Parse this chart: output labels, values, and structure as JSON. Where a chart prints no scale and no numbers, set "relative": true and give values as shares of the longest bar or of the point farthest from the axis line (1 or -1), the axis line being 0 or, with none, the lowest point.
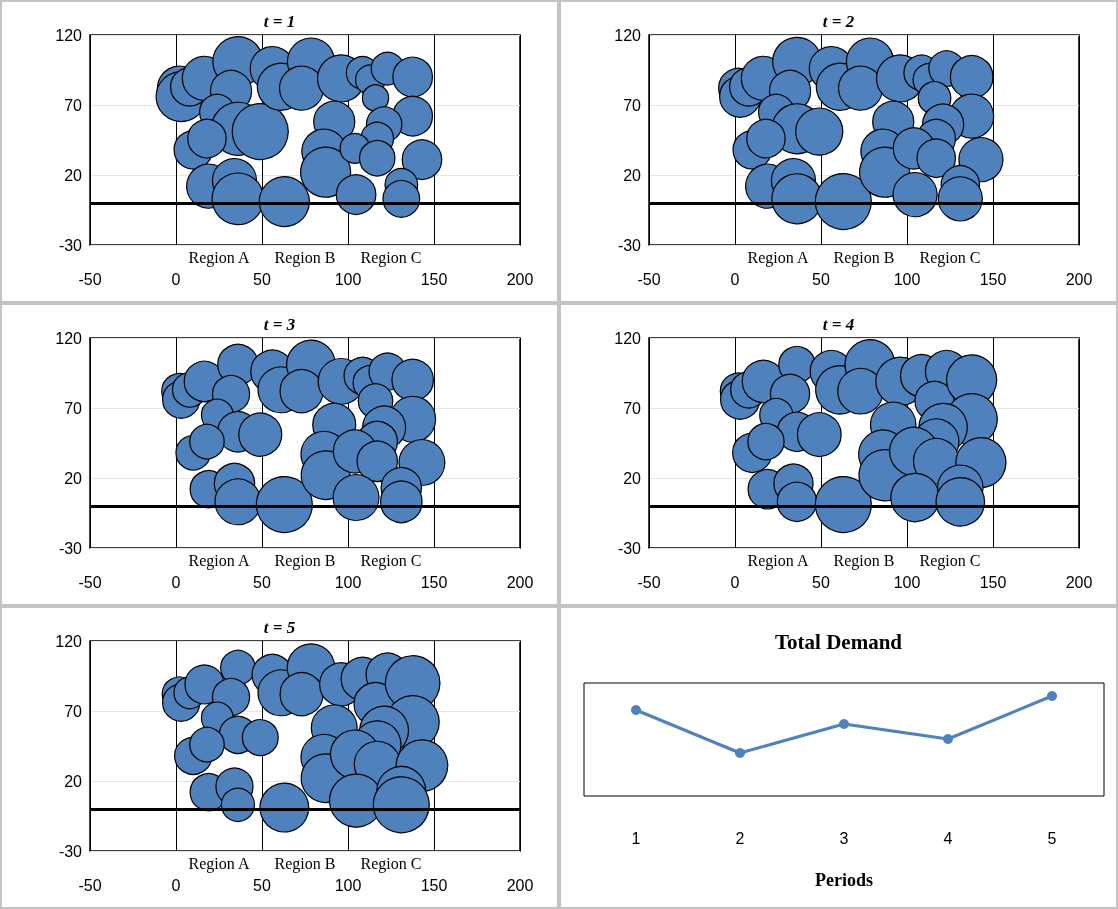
{
  "chart_data": [
    {
      "type": "bubble",
      "title": "t = 1",
      "color": "#4f81bd",
      "xlim": [
        -50,
        200
      ],
      "ylim": [
        -30,
        120
      ],
      "xticks": [
        -50,
        0,
        50,
        100,
        150,
        200
      ],
      "yticks": [
        -30,
        20,
        70,
        120
      ],
      "grid": true,
      "ref_lines": [
        {
          "axis": "y",
          "value": 0,
          "color": "#000000"
        }
      ],
      "annotations": [
        "Region A",
        "Region B",
        "Region C"
      ],
      "x": [
        2,
        3,
        8,
        16.5,
        36,
        32,
        24,
        36,
        49,
        10,
        18,
        19,
        34,
        36,
        56,
        61,
        78.5,
        73,
        96,
        63,
        92,
        86,
        87,
        108.5,
        113,
        123,
        116,
        137.6,
        137.6,
        121,
        117,
        104,
        117,
        143,
        104.7,
        131,
        131
      ],
      "values": [
        82,
        76,
        83,
        89,
        101,
        80,
        65,
        53,
        51,
        38,
        46,
        12,
        16,
        3,
        96,
        83,
        101,
        82,
        89,
        1,
        58,
        37,
        22,
        93,
        88,
        96,
        75,
        90,
        62,
        56,
        46,
        39,
        32,
        31,
        6,
        13,
        3
      ],
      "sizes": [
        0.62,
        0.8,
        0.47,
        0.62,
        0.8,
        0.54,
        0.4,
        0.9,
        1,
        0.47,
        0.47,
        0.62,
        0.62,
        0.85,
        0.62,
        0.71,
        0.71,
        0.62,
        0.71,
        0.8,
        0.54,
        0.62,
        0.8,
        0.34,
        0.28,
        0.34,
        0.22,
        0.5,
        0.5,
        0.4,
        0.34,
        0.28,
        0.4,
        0.5,
        0.5,
        0.34,
        0.43
      ]
    },
    {
      "type": "bubble",
      "title": "t = 2",
      "color": "#4f81bd",
      "xlim": [
        -50,
        200
      ],
      "ylim": [
        -30,
        120
      ],
      "xticks": [
        -50,
        0,
        50,
        100,
        150,
        200
      ],
      "yticks": [
        -30,
        20,
        70,
        120
      ],
      "grid": true,
      "ref_lines": [
        {
          "axis": "y",
          "value": 0,
          "color": "#000000"
        }
      ],
      "annotations": [
        "Region A",
        "Region B",
        "Region C"
      ],
      "x": [
        2,
        3,
        8,
        16.5,
        36,
        32,
        24,
        36,
        49,
        10,
        18,
        19,
        34,
        36,
        56,
        61,
        78.5,
        73,
        96,
        63,
        92,
        86,
        87,
        108.5,
        113,
        123,
        116,
        137.6,
        137.6,
        121,
        117,
        104,
        117,
        143,
        104.7,
        131,
        131
      ],
      "values": [
        82,
        76,
        83,
        89,
        101,
        80,
        65,
        53,
        51,
        38,
        46,
        12,
        16,
        3,
        96,
        83,
        101,
        82,
        89,
        1,
        58,
        37,
        22,
        93,
        88,
        96,
        75,
        90,
        62,
        56,
        46,
        39,
        32,
        31,
        6,
        13,
        3
      ],
      "sizes": [
        0.5,
        0.54,
        0.47,
        0.62,
        0.75,
        0.54,
        0.4,
        0.8,
        0.71,
        0.47,
        0.47,
        0.62,
        0.62,
        0.8,
        0.62,
        0.71,
        0.71,
        0.62,
        0.71,
        1,
        0.54,
        0.62,
        0.8,
        0.4,
        0.34,
        0.4,
        0.34,
        0.58,
        0.62,
        0.54,
        0.47,
        0.54,
        0.47,
        0.62,
        0.62,
        0.47,
        0.62
      ]
    },
    {
      "type": "bubble",
      "title": "t = 3",
      "color": "#4f81bd",
      "xlim": [
        -50,
        200
      ],
      "ylim": [
        -30,
        120
      ],
      "xticks": [
        -50,
        0,
        50,
        100,
        150,
        200
      ],
      "yticks": [
        -30,
        20,
        70,
        120
      ],
      "grid": true,
      "ref_lines": [
        {
          "axis": "y",
          "value": 0,
          "color": "#000000"
        }
      ],
      "annotations": [
        "Region A",
        "Region B",
        "Region C"
      ],
      "x": [
        2,
        3,
        8,
        16.5,
        36,
        32,
        24,
        36,
        49,
        10,
        18,
        19,
        34,
        36,
        56,
        61,
        78.5,
        73,
        96,
        63,
        92,
        86,
        87,
        108.5,
        113,
        123,
        116,
        137.6,
        137.6,
        121,
        117,
        104,
        117,
        143,
        104.7,
        131,
        131
      ],
      "values": [
        82,
        76,
        83,
        89,
        101,
        80,
        65,
        53,
        51,
        38,
        46,
        12,
        16,
        3,
        96,
        83,
        101,
        82,
        89,
        1,
        58,
        37,
        22,
        93,
        88,
        96,
        75,
        90,
        62,
        56,
        46,
        39,
        32,
        31,
        6,
        13,
        3
      ],
      "sizes": [
        0.4,
        0.44,
        0.38,
        0.52,
        0.52,
        0.44,
        0.32,
        0.52,
        0.59,
        0.38,
        0.38,
        0.44,
        0.52,
        0.67,
        0.59,
        0.67,
        0.76,
        0.59,
        0.67,
        1,
        0.59,
        0.67,
        0.76,
        0.44,
        0.38,
        0.44,
        0.38,
        0.55,
        0.67,
        0.59,
        0.52,
        0.59,
        0.52,
        0.67,
        0.67,
        0.52,
        0.55
      ]
    },
    {
      "type": "bubble",
      "title": "t = 4",
      "color": "#4f81bd",
      "xlim": [
        -50,
        200
      ],
      "ylim": [
        -30,
        120
      ],
      "xticks": [
        -50,
        0,
        50,
        100,
        150,
        200
      ],
      "yticks": [
        -30,
        20,
        70,
        120
      ],
      "grid": true,
      "ref_lines": [
        {
          "axis": "y",
          "value": 0,
          "color": "#000000"
        }
      ],
      "annotations": [
        "Region A",
        "Region B",
        "Region C"
      ],
      "x": [
        2,
        3,
        8,
        16.5,
        36,
        32,
        24,
        36,
        49,
        10,
        18,
        19,
        34,
        36,
        56,
        61,
        78.5,
        73,
        96,
        63,
        92,
        86,
        87,
        108.5,
        123,
        116,
        137.6,
        137.6,
        121,
        117,
        104,
        117,
        143,
        104.7,
        131,
        131
      ],
      "values": [
        82,
        76,
        83,
        89,
        101,
        80,
        65,
        53,
        51,
        38,
        46,
        12,
        16,
        3,
        96,
        83,
        101,
        82,
        89,
        1,
        58,
        37,
        22,
        93,
        96,
        75,
        90,
        62,
        56,
        46,
        39,
        32,
        31,
        6,
        13,
        3
      ],
      "sizes": [
        0.42,
        0.49,
        0.42,
        0.57,
        0.42,
        0.49,
        0.35,
        0.49,
        0.61,
        0.49,
        0.42,
        0.49,
        0.49,
        0.49,
        0.57,
        0.75,
        0.8,
        0.66,
        0.75,
        1,
        0.66,
        0.75,
        0.84,
        0.57,
        0.57,
        0.49,
        0.8,
        0.84,
        0.75,
        0.66,
        0.75,
        0.66,
        0.8,
        0.75,
        0.66,
        0.75
      ]
    },
    {
      "type": "bubble",
      "title": "t = 5",
      "color": "#4f81bd",
      "xlim": [
        -50,
        200
      ],
      "ylim": [
        -30,
        120
      ],
      "xticks": [
        -50,
        0,
        50,
        100,
        150,
        200
      ],
      "yticks": [
        -30,
        20,
        70,
        120
      ],
      "grid": true,
      "ref_lines": [
        {
          "axis": "y",
          "value": 0,
          "color": "#000000"
        }
      ],
      "annotations": [
        "Region A",
        "Region B",
        "Region C"
      ],
      "x": [
        2,
        3,
        8,
        16.5,
        36,
        32,
        24,
        36,
        49,
        10,
        18,
        19,
        34,
        36,
        56,
        61,
        78.5,
        73,
        96,
        63,
        92,
        86,
        87,
        108.5,
        123,
        116,
        137.6,
        137.6,
        121,
        117,
        104,
        117,
        143,
        104.7,
        131,
        131
      ],
      "values": [
        82,
        76,
        83,
        89,
        101,
        80,
        65,
        53,
        51,
        38,
        46,
        12,
        16,
        3,
        96,
        83,
        101,
        82,
        89,
        1,
        58,
        37,
        22,
        93,
        96,
        75,
        90,
        62,
        56,
        46,
        39,
        32,
        31,
        6,
        13,
        3
      ],
      "sizes": [
        0.38,
        0.44,
        0.32,
        0.48,
        0.38,
        0.44,
        0.32,
        0.44,
        0.41,
        0.44,
        0.38,
        0.44,
        0.44,
        0.35,
        0.52,
        0.67,
        0.72,
        0.59,
        0.59,
        0.76,
        0.67,
        0.67,
        0.76,
        0.59,
        0.59,
        0.59,
        0.95,
        0.9,
        0.76,
        0.72,
        0.76,
        0.67,
        0.85,
        0.9,
        0.76,
        1
      ]
    },
    {
      "type": "line",
      "title": "Total Demand",
      "xlabel": "Periods",
      "relative": true,
      "color": "#4f81bd",
      "marker": "circle",
      "categories": [
        "1",
        "2",
        "3",
        "4",
        "5"
      ],
      "values": [
        0.86,
        0.43,
        0.72,
        0.57,
        1
      ]
    }
  ]
}
